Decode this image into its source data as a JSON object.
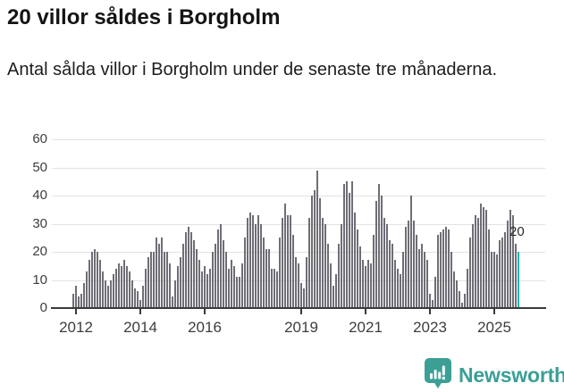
{
  "header": {
    "title": "20 villor såldes i Borgholm",
    "subtitle": "Antal sålda villor i Borgholm under de senaste tre månaderna."
  },
  "chart_data": {
    "type": "bar",
    "title": "20 villor såldes i Borgholm",
    "frequency": "monthly",
    "x_start": "2011-12",
    "x_end": "2025-10",
    "values": [
      5,
      8,
      4,
      5,
      9,
      13,
      17,
      20,
      21,
      20,
      17,
      13,
      10,
      8,
      10,
      12,
      14,
      16,
      15,
      17,
      15,
      13,
      10,
      7,
      6,
      3,
      8,
      14,
      18,
      20,
      20,
      25,
      23,
      25,
      20,
      20,
      16,
      4,
      10,
      15,
      18,
      23,
      27,
      29,
      27,
      24,
      21,
      17,
      13,
      15,
      12,
      14,
      20,
      23,
      28,
      30,
      24,
      20,
      14,
      17,
      15,
      11,
      11,
      16,
      25,
      32,
      34,
      33,
      30,
      33,
      30,
      25,
      21,
      21,
      14,
      14,
      13,
      25,
      32,
      37,
      33,
      33,
      26,
      18,
      16,
      9,
      7,
      18,
      32,
      40,
      42,
      49,
      39,
      32,
      30,
      23,
      16,
      8,
      12,
      23,
      30,
      44,
      45,
      41,
      45,
      34,
      28,
      22,
      17,
      15,
      17,
      16,
      26,
      38,
      44,
      40,
      32,
      30,
      24,
      23,
      17,
      14,
      12,
      20,
      29,
      31,
      40,
      31,
      26,
      21,
      23,
      20,
      17,
      5,
      3,
      11,
      26,
      27,
      28,
      29,
      28,
      20,
      13,
      10,
      6,
      2,
      5,
      14,
      25,
      30,
      33,
      32,
      37,
      36,
      35,
      28,
      20,
      20,
      19,
      24,
      25,
      27,
      31,
      35,
      33,
      23,
      20
    ],
    "highlight": {
      "index": 166,
      "value": 20,
      "label": "20",
      "color": "#1db6ae"
    },
    "bar_color": "#6e6e76",
    "ylim": [
      0,
      60
    ],
    "y_ticks": [
      0,
      10,
      20,
      30,
      40,
      50,
      60
    ],
    "x_ticks": [
      {
        "label": "2012",
        "month_index": 1
      },
      {
        "label": "2014",
        "month_index": 25
      },
      {
        "label": "2016",
        "month_index": 49
      },
      {
        "label": "2019",
        "month_index": 85
      },
      {
        "label": "2021",
        "month_index": 109
      },
      {
        "label": "2023",
        "month_index": 133
      },
      {
        "label": "2025",
        "month_index": 157
      }
    ],
    "grid": true,
    "legend": "none"
  },
  "footer": {
    "brand": "Newsworthy",
    "logo_icon": "bar-chart-speech-bubble-icon",
    "brand_color": "#3b9f96"
  }
}
